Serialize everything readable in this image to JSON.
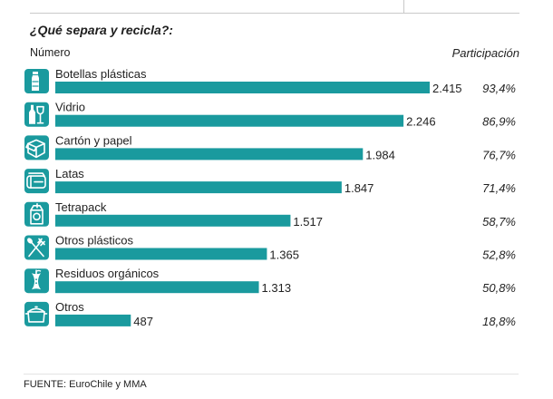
{
  "header": {
    "title": "¿Qué separa y recicla?:",
    "left_column": "Número",
    "right_column": "Participación"
  },
  "footer": {
    "source": "FUENTE: EuroChile y MMA"
  },
  "colors": {
    "bar": "#1a9a9e",
    "icon": "#1a9a9e"
  },
  "chart_data": {
    "type": "bar",
    "orientation": "horizontal",
    "title": "¿Qué separa y recicla?:",
    "categories": [
      "Botellas plásticas",
      "Vidrio",
      "Cartón y papel",
      "Latas",
      "Tetrapack",
      "Otros plásticos",
      "Residuos orgánicos",
      "Otros"
    ],
    "value_labels": [
      "2.415",
      "2.246",
      "1.984",
      "1.847",
      "1.517",
      "1.365",
      "1.313",
      "487"
    ],
    "values": [
      2415,
      2246,
      1984,
      1847,
      1517,
      1365,
      1313,
      487
    ],
    "share_labels": [
      "93,4%",
      "86,9%",
      "76,7%",
      "71,4%",
      "58,7%",
      "52,8%",
      "50,8%",
      "18,8%"
    ],
    "share": [
      93.4,
      86.9,
      76.7,
      71.4,
      58.7,
      52.8,
      50.8,
      18.8
    ],
    "icons": [
      "bottle-icon",
      "glass-bottle-icon",
      "cardboard-box-icon",
      "can-icon",
      "tetrapack-icon",
      "cutlery-icon",
      "apple-core-icon",
      "pot-icon"
    ],
    "xlim": [
      0,
      2415
    ],
    "grid": false,
    "legend": "none"
  }
}
